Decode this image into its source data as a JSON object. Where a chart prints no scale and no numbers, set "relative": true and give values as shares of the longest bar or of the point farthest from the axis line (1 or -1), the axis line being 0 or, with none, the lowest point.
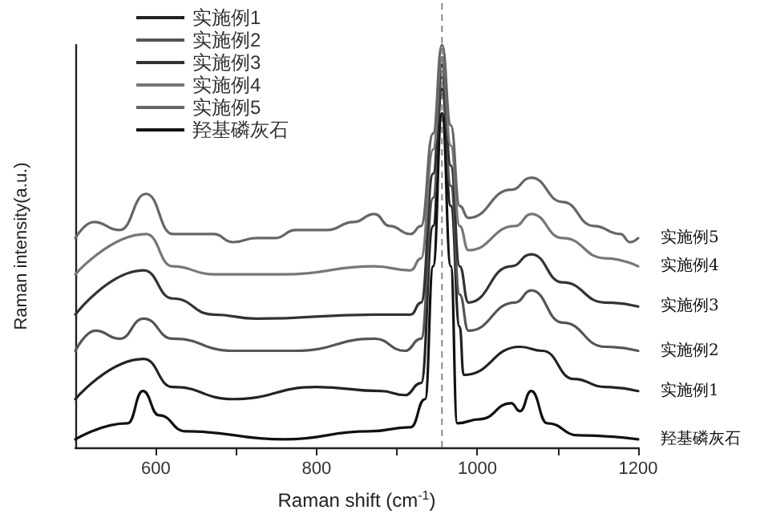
{
  "chart_data": {
    "type": "line",
    "relative": true,
    "xlabel": "Raman shift (cm$^{-1}$)",
    "ylabel": "Raman intensity(a.u.)",
    "xlim": [
      500,
      1200
    ],
    "xticks": [
      600,
      {
        "value": 700,
        "label": null
      },
      800,
      {
        "value": 900,
        "label": null
      },
      1000,
      {
        "value": 1100,
        "label": null
      },
      1200
    ],
    "grid": false,
    "legend": "top left",
    "marker": "none",
    "line_style": "solid",
    "ref_lines": [
      {
        "axis": "x",
        "value": 956,
        "label": null,
        "color": "#888888",
        "line_style": "dashed"
      }
    ],
    "series": [
      {
        "name": "实施例1",
        "color": "#222222",
        "x": [
          500,
          585,
          621,
          696,
          800,
          880,
          910,
          930,
          945,
          956,
          967,
          978,
          983,
          1053,
          1081,
          1120,
          1159,
          1200
        ],
        "values": [
          0.12,
          0.22,
          0.15,
          0.12,
          0.15,
          0.14,
          0.13,
          0.16,
          0.55,
          0.89,
          0.6,
          0.3,
          0.18,
          0.25,
          0.24,
          0.17,
          0.15,
          0.14
        ]
      },
      {
        "name": "实施例2",
        "color": "#555555",
        "x": [
          500,
          525,
          555,
          585,
          621,
          696,
          774,
          872,
          910,
          930,
          945,
          956,
          967,
          978,
          989,
          1047,
          1067,
          1106,
          1159,
          1200
        ],
        "values": [
          0.24,
          0.29,
          0.27,
          0.32,
          0.27,
          0.24,
          0.24,
          0.27,
          0.24,
          0.27,
          0.62,
          0.92,
          0.65,
          0.38,
          0.29,
          0.36,
          0.39,
          0.31,
          0.25,
          0.24
        ]
      },
      {
        "name": "实施例3",
        "color": "#333333",
        "x": [
          500,
          585,
          621,
          672,
          725,
          872,
          917,
          930,
          945,
          956,
          967,
          978,
          989,
          1042,
          1067,
          1106,
          1159,
          1200
        ],
        "values": [
          0.33,
          0.44,
          0.37,
          0.33,
          0.32,
          0.33,
          0.33,
          0.36,
          0.68,
          0.95,
          0.7,
          0.45,
          0.36,
          0.45,
          0.48,
          0.41,
          0.36,
          0.35
        ]
      },
      {
        "name": "实施例4",
        "color": "#777777",
        "x": [
          500,
          588,
          621,
          672,
          696,
          760,
          872,
          917,
          930,
          945,
          956,
          967,
          978,
          989,
          1047,
          1067,
          1106,
          1159,
          1200
        ],
        "values": [
          0.43,
          0.53,
          0.45,
          0.43,
          0.43,
          0.43,
          0.45,
          0.44,
          0.47,
          0.74,
          0.97,
          0.75,
          0.55,
          0.49,
          0.55,
          0.58,
          0.52,
          0.47,
          0.45
        ]
      },
      {
        "name": "实施例5",
        "color": "#666666",
        "x": [
          500,
          523,
          555,
          588,
          621,
          672,
          696,
          725,
          748,
          774,
          813,
          846,
          872,
          891,
          917,
          930,
          945,
          956,
          967,
          978,
          989,
          1042,
          1067,
          1106,
          1145,
          1178,
          1190,
          1200
        ],
        "values": [
          0.52,
          0.56,
          0.54,
          0.63,
          0.53,
          0.53,
          0.51,
          0.52,
          0.52,
          0.54,
          0.54,
          0.56,
          0.58,
          0.55,
          0.53,
          0.55,
          0.78,
          1.0,
          0.8,
          0.6,
          0.57,
          0.64,
          0.67,
          0.61,
          0.55,
          0.53,
          0.51,
          0.52
        ]
      },
      {
        "name": "羟基磷灰石",
        "color": "#111111",
        "x": [
          500,
          565,
          584,
          604,
          637,
          760,
          866,
          917,
          935,
          945,
          956,
          967,
          975,
          1003,
          1042,
          1053,
          1067,
          1087,
          1126,
          1200
        ],
        "values": [
          0.02,
          0.06,
          0.14,
          0.08,
          0.04,
          0.02,
          0.04,
          0.05,
          0.12,
          0.45,
          0.83,
          0.45,
          0.06,
          0.07,
          0.11,
          0.09,
          0.14,
          0.06,
          0.03,
          0.02
        ]
      }
    ]
  }
}
